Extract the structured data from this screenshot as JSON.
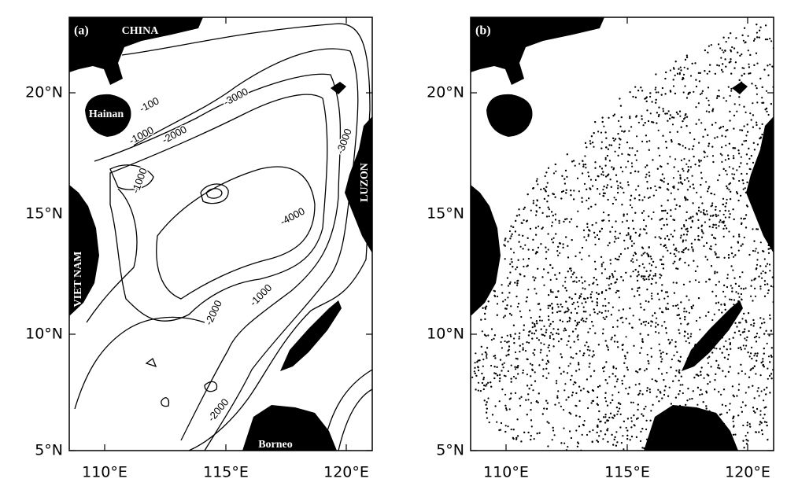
{
  "panels": [
    {
      "label": "(a)",
      "places": [
        "CHINA",
        "Hainan",
        "VIET NAM",
        "LUZON",
        "Borneo"
      ],
      "contour_labels": [
        "-100",
        "-1000",
        "-2000",
        "-3000",
        "-3000",
        "-1000",
        "-4000",
        "-2000",
        "-1000",
        "-2000"
      ]
    },
    {
      "label": "(b)"
    }
  ],
  "axes": {
    "lat_ticks": [
      "20°N",
      "15°N",
      "10°N",
      "5°N"
    ],
    "lon_ticks": [
      "110°E",
      "115°E",
      "120°E"
    ]
  }
}
